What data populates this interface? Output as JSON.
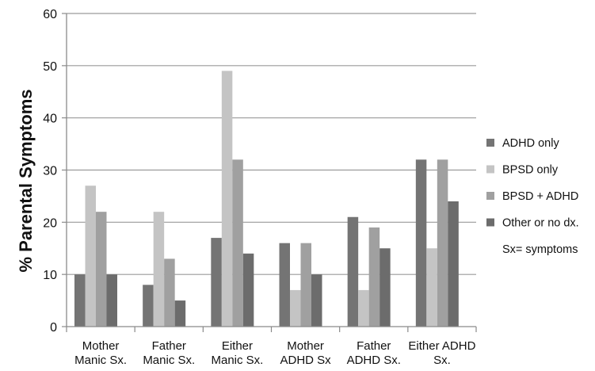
{
  "chart_data": {
    "type": "bar",
    "title": "",
    "xlabel": "",
    "ylabel": "% Parental Symptoms",
    "ylim": [
      0,
      60
    ],
    "yticks": [
      0,
      10,
      20,
      30,
      40,
      50,
      60
    ],
    "grid": true,
    "legend_position": "right",
    "categories": [
      [
        "Mother",
        "Manic Sx."
      ],
      [
        "Father",
        "Manic Sx."
      ],
      [
        "Either",
        "Manic Sx."
      ],
      [
        "Mother",
        "ADHD Sx"
      ],
      [
        "Father",
        "ADHD Sx."
      ],
      [
        "Either ADHD",
        "Sx."
      ]
    ],
    "series": [
      {
        "name": "ADHD only",
        "color": "#747474",
        "values": [
          10,
          8,
          17,
          16,
          21,
          32
        ]
      },
      {
        "name": "BPSD only",
        "color": "#c4c4c4",
        "values": [
          27,
          22,
          49,
          7,
          7,
          15
        ]
      },
      {
        "name": "BPSD + ADHD",
        "color": "#a0a0a0",
        "values": [
          22,
          13,
          32,
          16,
          19,
          32
        ]
      },
      {
        "name": "Other or no dx.",
        "color": "#6c6c6c",
        "values": [
          10,
          5,
          14,
          10,
          15,
          24
        ]
      }
    ],
    "legend_note": "Sx= symptoms"
  }
}
